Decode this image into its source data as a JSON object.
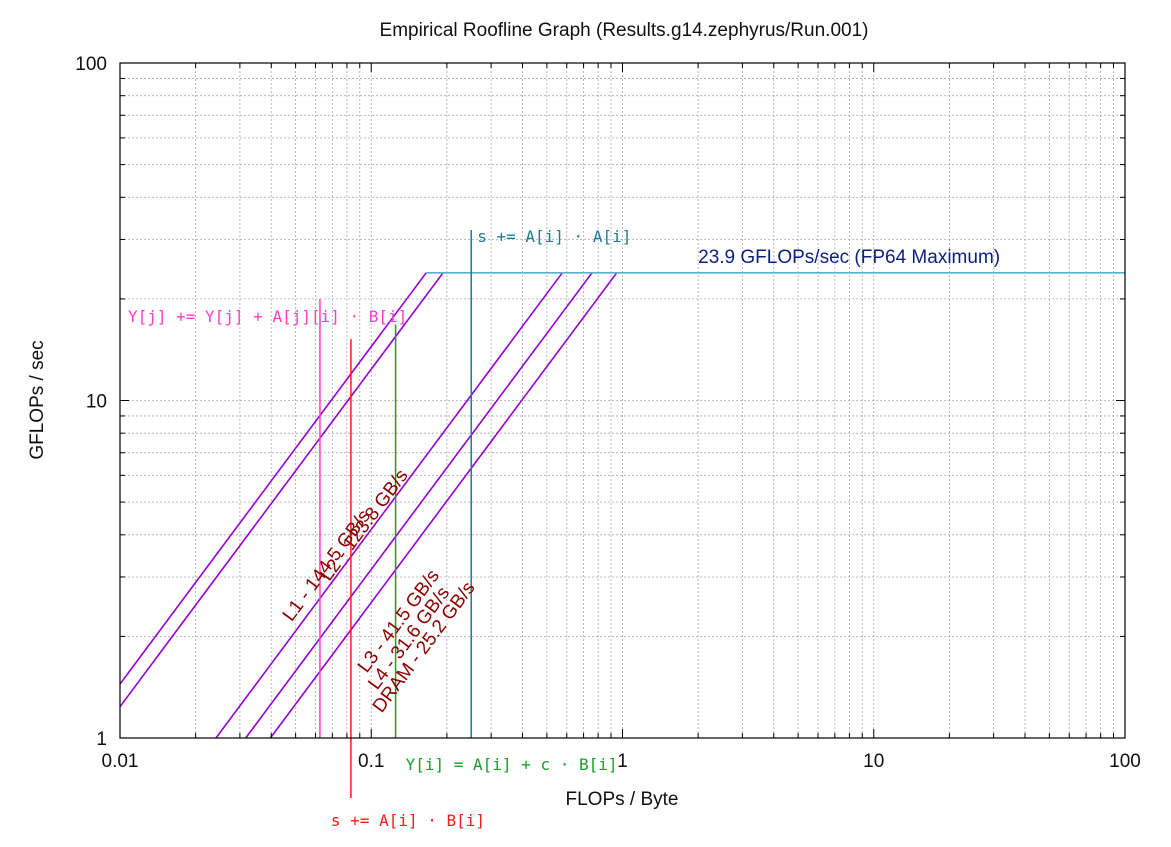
{
  "chart_data": {
    "type": "line",
    "title": "Empirical Roofline Graph (Results.g14.zephyrus/Run.001)",
    "xlabel": "FLOPs / Byte",
    "ylabel": "GFLOPs / sec",
    "x_scale": "log",
    "y_scale": "log",
    "xlim": [
      0.01,
      100
    ],
    "ylim": [
      1,
      100
    ],
    "x_ticks": [
      {
        "value": 0.01,
        "label": "0.01"
      },
      {
        "value": 0.1,
        "label": "0.1"
      },
      {
        "value": 1,
        "label": "1"
      },
      {
        "value": 10,
        "label": "10"
      },
      {
        "value": 100,
        "label": "100"
      }
    ],
    "y_ticks": [
      {
        "value": 1,
        "label": "1"
      },
      {
        "value": 10,
        "label": "10"
      },
      {
        "value": 100,
        "label": "100"
      }
    ],
    "grid": true,
    "compute_roof": {
      "label": "23.9 GFLOPs/sec (FP64 Maximum)",
      "gflops": 23.9,
      "color": "#5aaecd",
      "label_color": "#0b1f80"
    },
    "bandwidth_roofs": [
      {
        "label": "L1 - 144.5 GB/s",
        "gb_per_s": 144.5
      },
      {
        "label": "L2 - 123.8 GB/s",
        "gb_per_s": 123.8
      },
      {
        "label": "L3 - 41.5 GB/s",
        "gb_per_s": 41.5
      },
      {
        "label": "L4 - 31.6 GB/s",
        "gb_per_s": 31.6
      },
      {
        "label": "DRAM - 25.2 GB/s",
        "gb_per_s": 25.2
      }
    ],
    "roof_line_color": "#9400d3",
    "roof_label_color": "#8b0000",
    "kernels": [
      {
        "label": "Y[j] += Y[j] + A[j][i] · B[i]",
        "ai": 0.0625,
        "gflops_top": 20.0,
        "gflops_bottom": 1.0,
        "color": "#ff3cc8"
      },
      {
        "label": "s += A[i] · B[i]",
        "ai": 0.083,
        "gflops_top": 15.2,
        "gflops_bottom": 0.8,
        "color": "#ff1a1a"
      },
      {
        "label": "Y[i] = A[i] + c · B[i]",
        "ai": 0.125,
        "gflops_top": 16.8,
        "gflops_bottom": 1.0,
        "color": "#16a02b"
      },
      {
        "label": "s += A[i] · A[i]",
        "ai": 0.25,
        "gflops_top": 32.0,
        "gflops_bottom": 1.0,
        "color": "#1f7a93"
      }
    ]
  }
}
